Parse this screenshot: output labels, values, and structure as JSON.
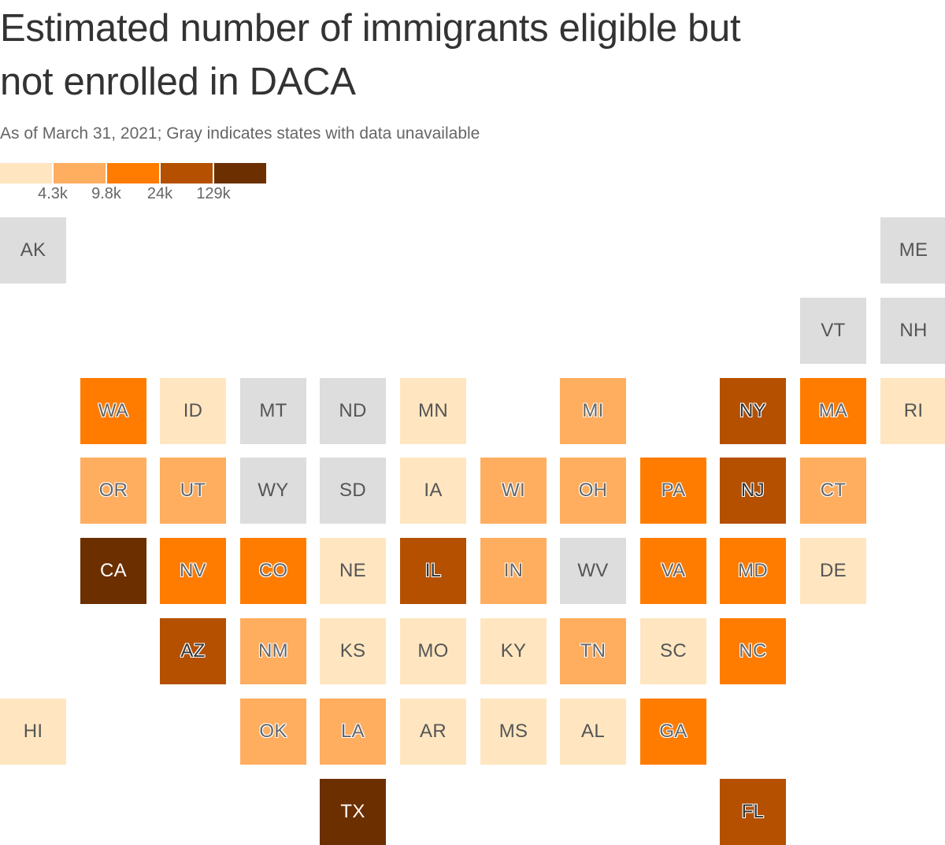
{
  "title": "Estimated number of immigrants eligible but not enrolled in DACA",
  "subtitle": "As of March 31, 2021; Gray indicates states with data unavailable",
  "chart_data": {
    "type": "tile-map",
    "measure": "Estimated number of immigrants eligible but not enrolled in DACA",
    "as_of": "March 31, 2021",
    "legend": {
      "thresholds": [
        "4.3k",
        "9.8k",
        "24k",
        "129k"
      ],
      "colors": [
        "#ffe6c0",
        "#ffad5f",
        "#ff7c00",
        "#b45000",
        "#6b2f00"
      ],
      "unavailable_color": "#dddddd"
    },
    "tiles": [
      {
        "state": "AK",
        "col": 0,
        "row": 0,
        "bin": null
      },
      {
        "state": "ME",
        "col": 11,
        "row": 0,
        "bin": null
      },
      {
        "state": "VT",
        "col": 10,
        "row": 1,
        "bin": null
      },
      {
        "state": "NH",
        "col": 11,
        "row": 1,
        "bin": null
      },
      {
        "state": "WA",
        "col": 1,
        "row": 2,
        "bin": 2
      },
      {
        "state": "ID",
        "col": 2,
        "row": 2,
        "bin": 0
      },
      {
        "state": "MT",
        "col": 3,
        "row": 2,
        "bin": null
      },
      {
        "state": "ND",
        "col": 4,
        "row": 2,
        "bin": null
      },
      {
        "state": "MN",
        "col": 5,
        "row": 2,
        "bin": 0
      },
      {
        "state": "MI",
        "col": 7,
        "row": 2,
        "bin": 1
      },
      {
        "state": "NY",
        "col": 9,
        "row": 2,
        "bin": 3
      },
      {
        "state": "MA",
        "col": 10,
        "row": 2,
        "bin": 2
      },
      {
        "state": "RI",
        "col": 11,
        "row": 2,
        "bin": 0
      },
      {
        "state": "OR",
        "col": 1,
        "row": 3,
        "bin": 1
      },
      {
        "state": "UT",
        "col": 2,
        "row": 3,
        "bin": 1
      },
      {
        "state": "WY",
        "col": 3,
        "row": 3,
        "bin": null
      },
      {
        "state": "SD",
        "col": 4,
        "row": 3,
        "bin": null
      },
      {
        "state": "IA",
        "col": 5,
        "row": 3,
        "bin": 0
      },
      {
        "state": "WI",
        "col": 6,
        "row": 3,
        "bin": 1
      },
      {
        "state": "OH",
        "col": 7,
        "row": 3,
        "bin": 1
      },
      {
        "state": "PA",
        "col": 8,
        "row": 3,
        "bin": 2
      },
      {
        "state": "NJ",
        "col": 9,
        "row": 3,
        "bin": 3
      },
      {
        "state": "CT",
        "col": 10,
        "row": 3,
        "bin": 1
      },
      {
        "state": "CA",
        "col": 1,
        "row": 4,
        "bin": 4
      },
      {
        "state": "NV",
        "col": 2,
        "row": 4,
        "bin": 2
      },
      {
        "state": "CO",
        "col": 3,
        "row": 4,
        "bin": 2
      },
      {
        "state": "NE",
        "col": 4,
        "row": 4,
        "bin": 0
      },
      {
        "state": "IL",
        "col": 5,
        "row": 4,
        "bin": 3
      },
      {
        "state": "IN",
        "col": 6,
        "row": 4,
        "bin": 1
      },
      {
        "state": "WV",
        "col": 7,
        "row": 4,
        "bin": null
      },
      {
        "state": "VA",
        "col": 8,
        "row": 4,
        "bin": 2
      },
      {
        "state": "MD",
        "col": 9,
        "row": 4,
        "bin": 2
      },
      {
        "state": "DE",
        "col": 10,
        "row": 4,
        "bin": 0
      },
      {
        "state": "AZ",
        "col": 2,
        "row": 5,
        "bin": 3
      },
      {
        "state": "NM",
        "col": 3,
        "row": 5,
        "bin": 1
      },
      {
        "state": "KS",
        "col": 4,
        "row": 5,
        "bin": 0
      },
      {
        "state": "MO",
        "col": 5,
        "row": 5,
        "bin": 0
      },
      {
        "state": "KY",
        "col": 6,
        "row": 5,
        "bin": 0
      },
      {
        "state": "TN",
        "col": 7,
        "row": 5,
        "bin": 1
      },
      {
        "state": "SC",
        "col": 8,
        "row": 5,
        "bin": 0
      },
      {
        "state": "NC",
        "col": 9,
        "row": 5,
        "bin": 2
      },
      {
        "state": "HI",
        "col": 0,
        "row": 6,
        "bin": 0
      },
      {
        "state": "OK",
        "col": 3,
        "row": 6,
        "bin": 1
      },
      {
        "state": "LA",
        "col": 4,
        "row": 6,
        "bin": 1
      },
      {
        "state": "AR",
        "col": 5,
        "row": 6,
        "bin": 0
      },
      {
        "state": "MS",
        "col": 6,
        "row": 6,
        "bin": 0
      },
      {
        "state": "AL",
        "col": 7,
        "row": 6,
        "bin": 0
      },
      {
        "state": "GA",
        "col": 8,
        "row": 6,
        "bin": 2
      },
      {
        "state": "TX",
        "col": 4,
        "row": 7,
        "bin": 4
      },
      {
        "state": "FL",
        "col": 9,
        "row": 7,
        "bin": 3
      }
    ]
  }
}
